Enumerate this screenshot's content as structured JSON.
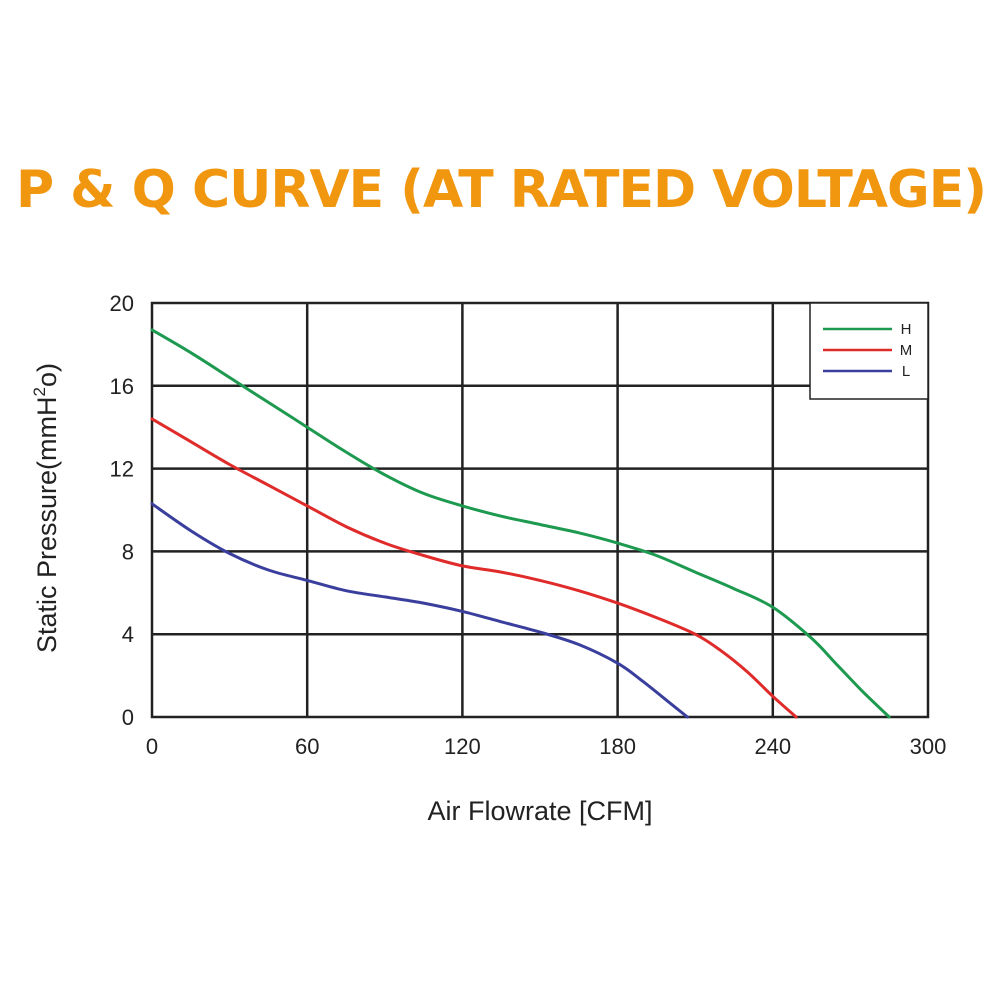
{
  "chart_data": {
    "type": "line",
    "title": "P & Q CURVE (AT RATED VOLTAGE)",
    "xlabel": "Air  Flowrate   [CFM]",
    "ylabel_parts": [
      "Static Pressure(mmH",
      "2",
      "o)"
    ],
    "xlim": [
      0,
      300
    ],
    "ylim": [
      0,
      20
    ],
    "xticks": [
      "0",
      "60",
      "120",
      "180",
      "240",
      "300"
    ],
    "yticks": [
      "0",
      "4",
      "8",
      "12",
      "16",
      "20"
    ],
    "grid": true,
    "legend_position": "top-right",
    "series": [
      {
        "name": "H",
        "color": "#1e9a50",
        "points": [
          [
            0,
            18.7
          ],
          [
            15,
            17.6
          ],
          [
            30,
            16.4
          ],
          [
            45,
            15.2
          ],
          [
            60,
            14.0
          ],
          [
            75,
            12.8
          ],
          [
            90,
            11.7
          ],
          [
            105,
            10.8
          ],
          [
            120,
            10.2
          ],
          [
            135,
            9.7
          ],
          [
            150,
            9.3
          ],
          [
            165,
            8.9
          ],
          [
            180,
            8.4
          ],
          [
            195,
            7.8
          ],
          [
            210,
            7.0
          ],
          [
            225,
            6.2
          ],
          [
            240,
            5.3
          ],
          [
            255,
            3.8
          ],
          [
            265,
            2.5
          ],
          [
            275,
            1.2
          ],
          [
            285,
            0
          ]
        ]
      },
      {
        "name": "M",
        "color": "#e02b2b",
        "points": [
          [
            0,
            14.4
          ],
          [
            15,
            13.3
          ],
          [
            30,
            12.2
          ],
          [
            45,
            11.2
          ],
          [
            60,
            10.2
          ],
          [
            75,
            9.2
          ],
          [
            90,
            8.4
          ],
          [
            105,
            7.8
          ],
          [
            120,
            7.3
          ],
          [
            135,
            7.0
          ],
          [
            150,
            6.6
          ],
          [
            165,
            6.1
          ],
          [
            180,
            5.5
          ],
          [
            195,
            4.8
          ],
          [
            210,
            4.0
          ],
          [
            220,
            3.2
          ],
          [
            230,
            2.2
          ],
          [
            240,
            1.0
          ],
          [
            249,
            0
          ]
        ]
      },
      {
        "name": "L",
        "color": "#3a3f9e",
        "points": [
          [
            0,
            10.3
          ],
          [
            15,
            9.0
          ],
          [
            30,
            7.9
          ],
          [
            45,
            7.1
          ],
          [
            60,
            6.6
          ],
          [
            75,
            6.1
          ],
          [
            90,
            5.8
          ],
          [
            105,
            5.5
          ],
          [
            120,
            5.1
          ],
          [
            135,
            4.6
          ],
          [
            150,
            4.1
          ],
          [
            165,
            3.5
          ],
          [
            180,
            2.6
          ],
          [
            190,
            1.7
          ],
          [
            200,
            0.7
          ],
          [
            207,
            0
          ]
        ]
      }
    ]
  }
}
